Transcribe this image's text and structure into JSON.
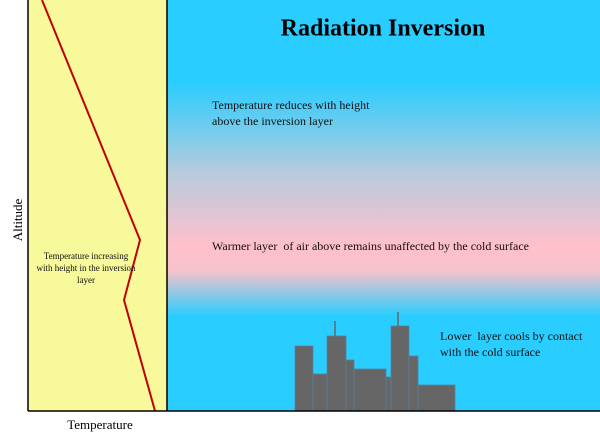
{
  "title": "Radiation Inversion",
  "annotations": {
    "upper": "Temperature reduces with height above the inversion layer",
    "middle": "Warmer layer  of air above remains unaffected by the cold surface",
    "lower": "Lower  layer cools by contact with the cold surface"
  },
  "profile_label": "Temperature increasing with height in the inversion layer",
  "axes": {
    "y_label": "Altitude",
    "x_label": "Temperature"
  }
}
